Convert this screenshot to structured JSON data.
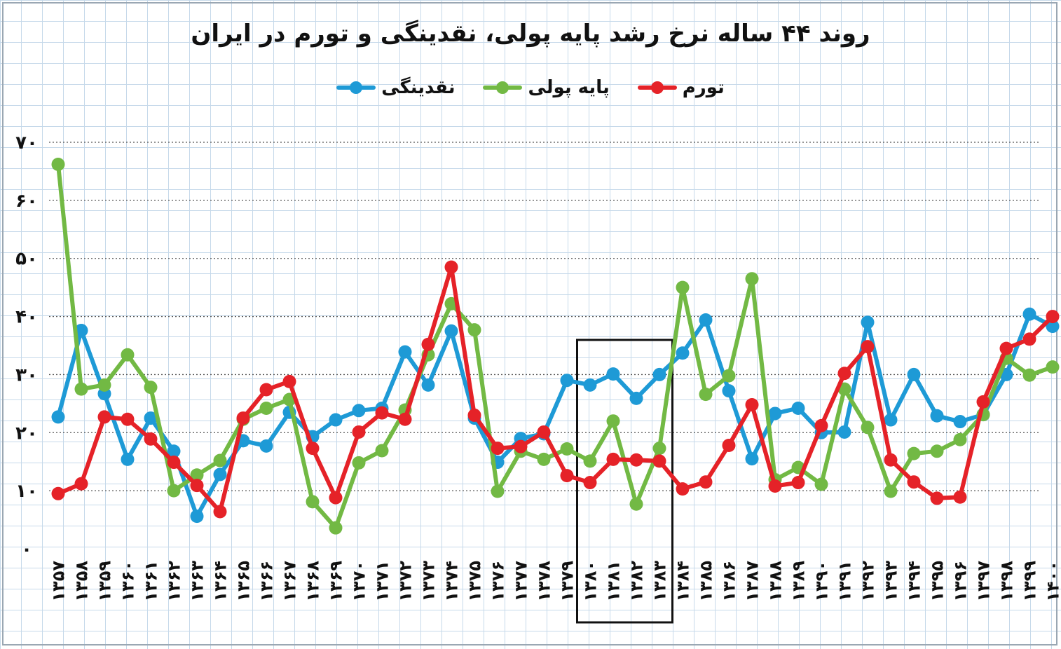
{
  "chart_data": {
    "type": "line",
    "title": "روند ۴۴ ساله نرخ رشد پایه پولی، نقدینگی و تورم در ایران",
    "xlabel": "",
    "ylabel": "",
    "ylim": [
      0,
      70
    ],
    "yticks": [
      0,
      10,
      20,
      30,
      40,
      50,
      60,
      70
    ],
    "ytick_labels": [
      "۰",
      "۱۰",
      "۲۰",
      "۳۰",
      "۴۰",
      "۵۰",
      "۶۰",
      "۷۰"
    ],
    "grid": true,
    "legend_position": "top-center",
    "categories": [
      "۱۳۵۷",
      "۱۳۵۸",
      "۱۳۵۹",
      "۱۳۶۰",
      "۱۳۶۱",
      "۱۳۶۲",
      "۱۳۶۳",
      "۱۳۶۴",
      "۱۳۶۵",
      "۱۳۶۶",
      "۱۳۶۷",
      "۱۳۶۸",
      "۱۳۶۹",
      "۱۳۷۰",
      "۱۳۷۱",
      "۱۳۷۲",
      "۱۳۷۳",
      "۱۳۷۴",
      "۱۳۷۵",
      "۱۳۷۶",
      "۱۳۷۷",
      "۱۳۷۸",
      "۱۳۷۹",
      "۱۳۸۰",
      "۱۳۸۱",
      "۱۳۸۲",
      "۱۳۸۳",
      "۱۳۸۴",
      "۱۳۸۵",
      "۱۳۸۶",
      "۱۳۸۷",
      "۱۳۸۸",
      "۱۳۸۹",
      "۱۳۹۰",
      "۱۳۹۱",
      "۱۳۹۲",
      "۱۳۹۳",
      "۱۳۹۴",
      "۱۳۹۵",
      "۱۳۹۶",
      "۱۳۹۷",
      "۱۳۹۸",
      "۱۳۹۹",
      "۱۴۰۰"
    ],
    "highlight": {
      "from_index": 23,
      "to_index": 26
    },
    "series": [
      {
        "name": "نقدینگی",
        "color": "#1e9ad6",
        "values": [
          22.7,
          37.6,
          26.7,
          15.4,
          22.5,
          16.8,
          5.6,
          12.8,
          18.6,
          17.7,
          23.5,
          19.3,
          22.2,
          23.8,
          24.2,
          33.9,
          28.2,
          37.5,
          22.5,
          14.9,
          19.0,
          19.8,
          29.0,
          28.2,
          30.1,
          25.9,
          30.0,
          33.7,
          39.4,
          27.2,
          15.5,
          23.3,
          24.2,
          20.0,
          20.1,
          39.0,
          22.2,
          30.0,
          22.9,
          21.9,
          23.1,
          30.0,
          40.4,
          38.3
        ]
      },
      {
        "name": "پایه پولی",
        "color": "#72b944",
        "values": [
          66.2,
          27.5,
          28.2,
          33.4,
          27.8,
          10.0,
          12.7,
          15.2,
          22.3,
          24.2,
          25.7,
          8.1,
          3.6,
          14.8,
          16.9,
          23.9,
          33.4,
          42.2,
          37.7,
          9.9,
          16.8,
          15.4,
          17.2,
          15.1,
          22.0,
          7.7,
          17.3,
          45.0,
          26.6,
          29.8,
          46.5,
          11.9,
          14.0,
          11.1,
          27.5,
          20.9,
          9.9,
          16.4,
          16.8,
          18.8,
          23.1,
          32.8,
          29.9,
          31.3
        ]
      },
      {
        "name": "تورم",
        "color": "#e52228",
        "values": [
          9.5,
          11.2,
          22.7,
          22.3,
          18.9,
          14.9,
          10.9,
          6.4,
          22.5,
          27.4,
          28.8,
          17.3,
          8.8,
          20.1,
          23.4,
          22.3,
          35.2,
          48.5,
          23.0,
          17.3,
          17.6,
          20.1,
          12.6,
          11.4,
          15.4,
          15.3,
          15.1,
          10.3,
          11.5,
          17.8,
          24.8,
          10.8,
          11.4,
          21.2,
          30.2,
          34.8,
          15.3,
          11.5,
          8.7,
          8.9,
          25.3,
          34.5,
          36.1,
          40.0
        ]
      }
    ]
  }
}
